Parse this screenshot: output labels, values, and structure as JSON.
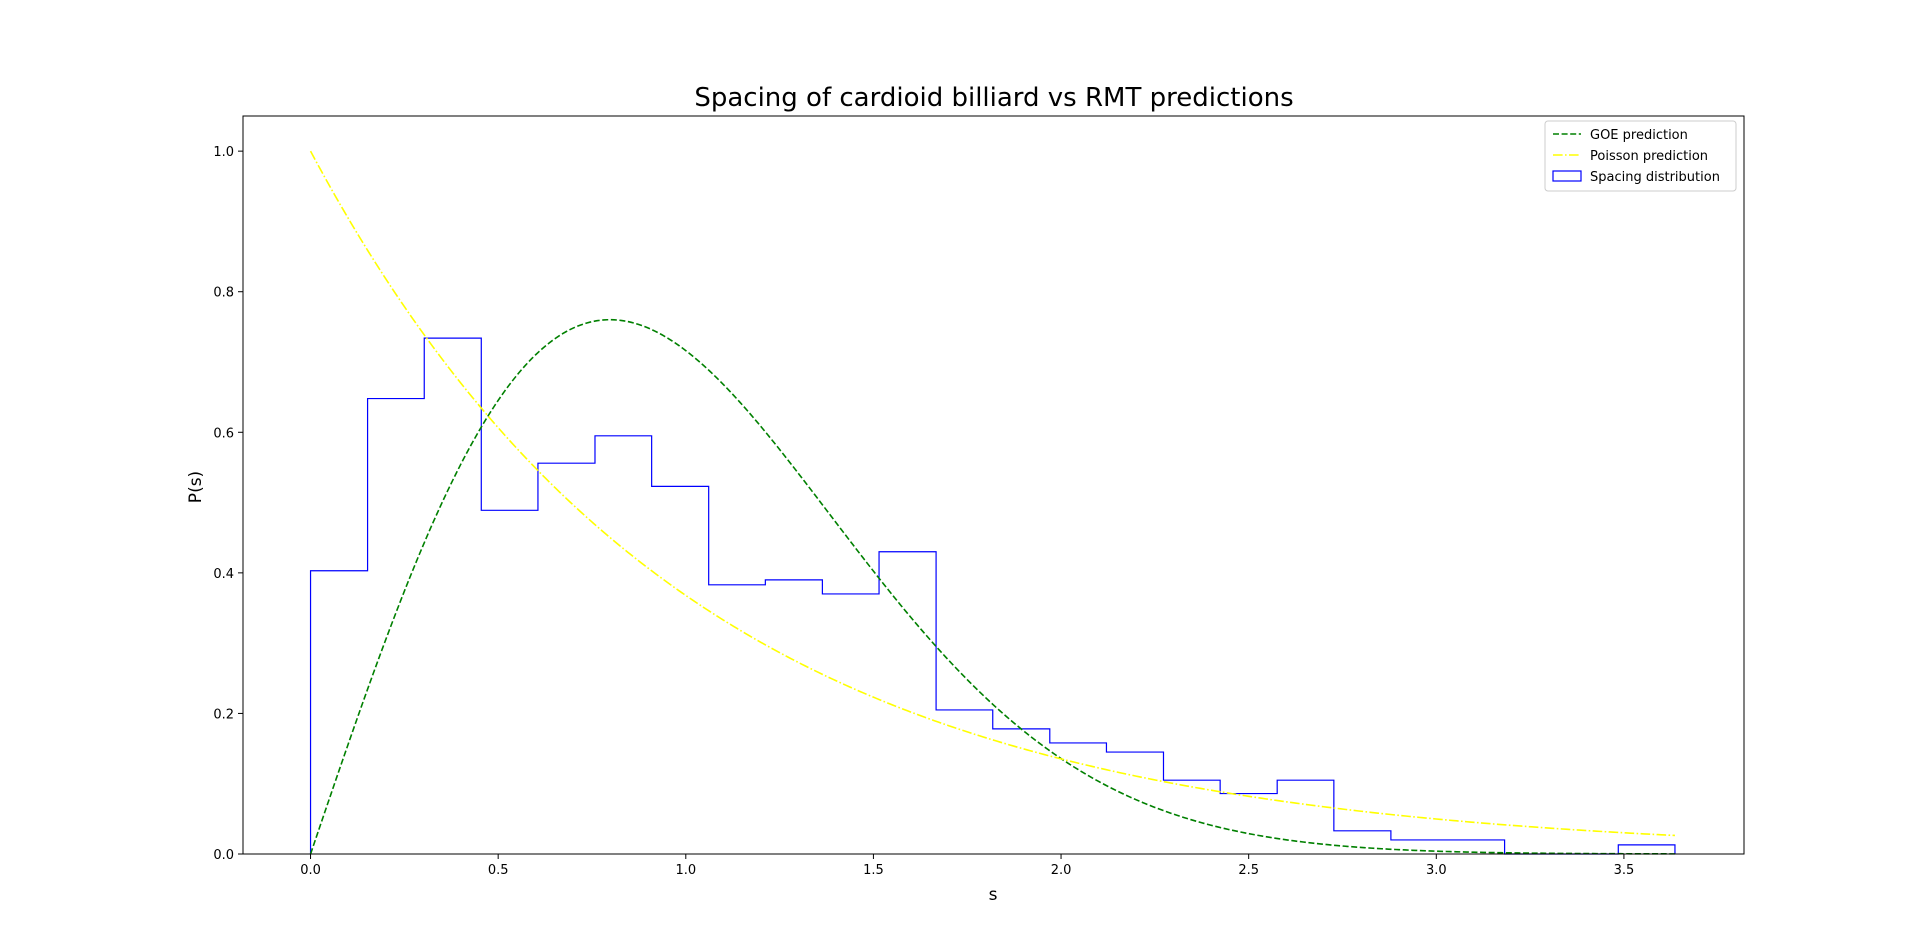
{
  "chart_data": {
    "type": "histogram+line",
    "title": "Spacing of cardioid billiard vs RMT predictions",
    "xlabel": "s",
    "ylabel": "P(s)",
    "xlim": [
      -0.18,
      3.82
    ],
    "ylim": [
      0,
      1.05
    ],
    "xticks": [
      0.0,
      0.5,
      1.0,
      1.5,
      2.0,
      2.5,
      3.0,
      3.5
    ],
    "xtick_labels": [
      "0.0",
      "0.5",
      "1.0",
      "1.5",
      "2.0",
      "2.5",
      "3.0",
      "3.5"
    ],
    "yticks": [
      0.0,
      0.2,
      0.4,
      0.6,
      0.8,
      1.0
    ],
    "ytick_labels": [
      "0.0",
      "0.2",
      "0.4",
      "0.6",
      "0.8",
      "1.0"
    ],
    "legend_position": "top-right",
    "grid": false,
    "histogram": {
      "name": "Spacing distribution",
      "color": "#0000ff",
      "style": "step",
      "bin_edges": [
        0.0,
        0.152,
        0.303,
        0.455,
        0.606,
        0.758,
        0.909,
        1.061,
        1.212,
        1.364,
        1.515,
        1.667,
        1.818,
        1.97,
        2.121,
        2.273,
        2.424,
        2.576,
        2.727,
        2.879,
        3.03,
        3.182,
        3.333,
        3.485,
        3.636
      ],
      "values": [
        0.403,
        0.648,
        0.734,
        0.489,
        0.556,
        0.595,
        0.523,
        0.383,
        0.39,
        0.37,
        0.43,
        0.205,
        0.178,
        0.158,
        0.145,
        0.105,
        0.086,
        0.105,
        0.033,
        0.02,
        0.02,
        0.0,
        0.0,
        0.013
      ]
    },
    "series": [
      {
        "name": "GOE prediction",
        "color": "#008000",
        "dash": "dashed",
        "x_range": [
          0.0,
          3.636
        ],
        "formula": "(pi/2) * s * exp(-pi * s^2 / 4)"
      },
      {
        "name": "Poisson prediction",
        "color": "#ffff00",
        "dash": "dashdot",
        "x_range": [
          0.0,
          3.636
        ],
        "formula": "exp(-s)"
      }
    ]
  }
}
